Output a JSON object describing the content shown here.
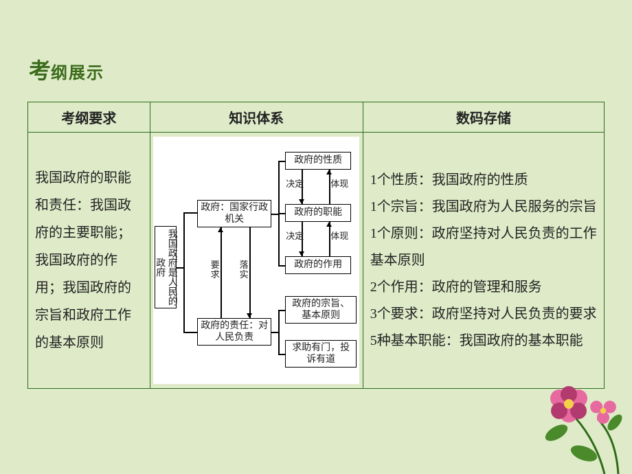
{
  "title": {
    "first": "考",
    "rest": "纲展示"
  },
  "headers": [
    "考纲要求",
    "知识体系",
    "数码存储"
  ],
  "col1_text": "我国政府的职能和责任：我国政府的主要职能；我国政府的作用；我国政府的宗旨和政府工作的基本原则",
  "col3_items": [
    {
      "n": "1",
      "t": "个性质：我国政府的性质"
    },
    {
      "n": "1",
      "t": "个宗旨：我国政府为人民服务的宗旨"
    },
    {
      "n": "1",
      "t": "个原则：政府坚持对人民负责的工作基本原则"
    },
    {
      "n": "2",
      "t": "个作用：政府的管理和服务"
    },
    {
      "n": "3",
      "t": "个要求：政府坚持对人民负责的要求"
    },
    {
      "n": "5",
      "t": "种基本职能：我国政府的基本职能"
    }
  ],
  "diagram": {
    "root": "我国政府是人民的政府",
    "mid1": "政府：国家行政机关",
    "mid2": "政府的责任：对人民负责",
    "r1": "政府的性质",
    "r2": "政府的职能",
    "r3": "政府的作用",
    "r4": "政府的宗旨、基本原则",
    "r5": "求助有门，投诉有道",
    "t_req_fall": "要求",
    "t_fall": "落实",
    "t_det": "决定",
    "t_ref": "体现"
  },
  "colors": {
    "page_bg": "#dfebc8",
    "title": "#3a6b1a",
    "border": "#2a6b1a",
    "text": "#222222",
    "flower_pink": "#e66aa0",
    "flower_dark": "#b23a6f",
    "flower_center": "#f3d24a",
    "leaf": "#4a8a2a",
    "stem": "#2e6b18"
  }
}
